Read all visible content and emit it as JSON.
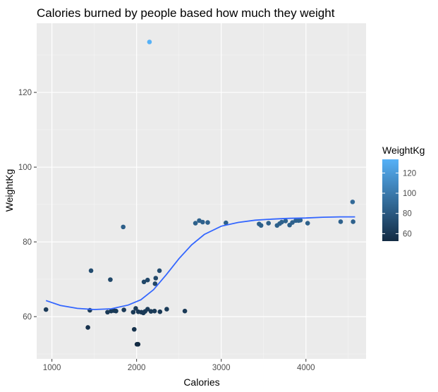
{
  "chart_data": {
    "type": "scatter",
    "title": "Calories burned by people based how much they weight",
    "xlabel": "Calories",
    "ylabel": "WeightKg",
    "xlim": [
      820,
      4710
    ],
    "ylim": [
      48.7,
      138.5
    ],
    "x_ticks": [
      1000,
      2000,
      3000,
      4000
    ],
    "x_tick_labels": [
      "1000",
      "2000",
      "3000",
      "4000"
    ],
    "y_ticks": [
      60,
      80,
      100,
      120
    ],
    "y_tick_labels": [
      "60",
      "80",
      "100",
      "120"
    ],
    "grid": true,
    "background": "#ebebeb",
    "legend": {
      "title": "WeightKg",
      "position": "right",
      "range": [
        52.6,
        133.5
      ],
      "breaks": [
        60,
        80,
        100,
        120
      ],
      "break_labels": [
        "60",
        "80",
        "100",
        "120"
      ],
      "low_color": "#132b43",
      "high_color": "#56b1f7"
    },
    "smooth_color": "#3366ff",
    "smooth_curve": [
      [
        930,
        64.3
      ],
      [
        1100,
        63.0
      ],
      [
        1300,
        62.2
      ],
      [
        1500,
        61.9
      ],
      [
        1700,
        62.1
      ],
      [
        1900,
        63.1
      ],
      [
        2050,
        64.5
      ],
      [
        2200,
        67.2
      ],
      [
        2350,
        71.2
      ],
      [
        2500,
        75.5
      ],
      [
        2650,
        79.2
      ],
      [
        2800,
        82.0
      ],
      [
        3000,
        84.2
      ],
      [
        3200,
        85.2
      ],
      [
        3400,
        85.8
      ],
      [
        3600,
        86.1
      ],
      [
        3800,
        86.3
      ],
      [
        4000,
        86.4
      ],
      [
        4200,
        86.6
      ],
      [
        4400,
        86.7
      ],
      [
        4580,
        86.7
      ]
    ],
    "points": [
      [
        2152,
        133.5
      ],
      [
        4551,
        90.7
      ],
      [
        1842,
        84.0
      ],
      [
        2740,
        85.7
      ],
      [
        2695,
        85.0
      ],
      [
        2780,
        85.3
      ],
      [
        2840,
        85.2
      ],
      [
        3055,
        85.1
      ],
      [
        3447,
        84.8
      ],
      [
        3470,
        84.4
      ],
      [
        3558,
        85.0
      ],
      [
        3659,
        84.4
      ],
      [
        3690,
        84.9
      ],
      [
        3714,
        85.3
      ],
      [
        3760,
        85.6
      ],
      [
        3807,
        84.5
      ],
      [
        3840,
        85.2
      ],
      [
        3880,
        85.7
      ],
      [
        3912,
        85.7
      ],
      [
        3934,
        85.8
      ],
      [
        4020,
        85.0
      ],
      [
        4410,
        85.4
      ],
      [
        4557,
        85.4
      ],
      [
        1462,
        72.3
      ],
      [
        1690,
        69.9
      ],
      [
        2087,
        69.3
      ],
      [
        2130,
        69.8
      ],
      [
        2218,
        68.8
      ],
      [
        2226,
        70.3
      ],
      [
        2270,
        72.3
      ],
      [
        930,
        61.9
      ],
      [
        1448,
        61.7
      ],
      [
        1657,
        61.2
      ],
      [
        1700,
        61.5
      ],
      [
        1735,
        61.6
      ],
      [
        1757,
        61.5
      ],
      [
        1850,
        61.8
      ],
      [
        1960,
        61.2
      ],
      [
        1990,
        62.2
      ],
      [
        2020,
        61.3
      ],
      [
        2057,
        61.2
      ],
      [
        2080,
        61.0
      ],
      [
        2100,
        61.4
      ],
      [
        2130,
        62.0
      ],
      [
        2170,
        61.4
      ],
      [
        2212,
        61.5
      ],
      [
        2276,
        61.3
      ],
      [
        2356,
        62.0
      ],
      [
        2570,
        61.5
      ],
      [
        1425,
        57.1
      ],
      [
        1972,
        56.6
      ],
      [
        2004,
        52.6
      ],
      [
        2018,
        52.6
      ]
    ]
  }
}
